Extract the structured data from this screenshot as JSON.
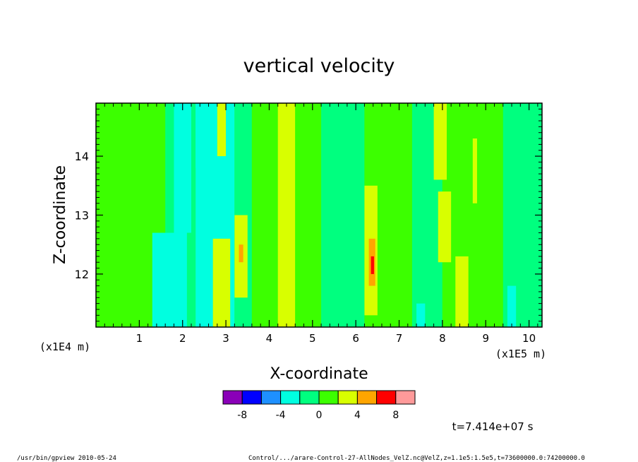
{
  "chart_data": {
    "type": "heatmap",
    "title": "vertical velocity",
    "xlabel": "X-coordinate",
    "ylabel": "Z-coordinate",
    "x_unit_left": "(x1E4 m)",
    "x_unit_right": "(x1E5 m)",
    "xlim": [
      0,
      10.3
    ],
    "ylim": [
      11.1,
      14.9
    ],
    "xticks": [
      "1",
      "2",
      "3",
      "4",
      "5",
      "6",
      "7",
      "8",
      "9",
      "10"
    ],
    "yticks": [
      "12",
      "13",
      "14"
    ],
    "colorbar": {
      "colors": [
        "#8a00b8",
        "#0000ff",
        "#1e90ff",
        "#00ffe0",
        "#00ff7f",
        "#3cff00",
        "#d8ff00",
        "#ffa500",
        "#ff0000",
        "#ff9a9a"
      ],
      "tick_labels": [
        "-8",
        "-4",
        "0",
        "4",
        "8"
      ]
    },
    "bands": [
      {
        "x0": 0.0,
        "x1": 1.6,
        "color": "#3cff00"
      },
      {
        "x0": 1.6,
        "x1": 2.3,
        "color": "#00ff7f"
      },
      {
        "x0": 2.3,
        "x1": 3.2,
        "color": "#00ffe0"
      },
      {
        "x0": 3.2,
        "x1": 3.6,
        "color": "#00ff7f"
      },
      {
        "x0": 3.6,
        "x1": 4.2,
        "color": "#3cff00"
      },
      {
        "x0": 4.2,
        "x1": 4.6,
        "color": "#d8ff00"
      },
      {
        "x0": 4.6,
        "x1": 5.2,
        "color": "#3cff00"
      },
      {
        "x0": 5.2,
        "x1": 6.2,
        "color": "#00ff7f"
      },
      {
        "x0": 6.2,
        "x1": 7.3,
        "color": "#3cff00"
      },
      {
        "x0": 7.3,
        "x1": 8.0,
        "color": "#00ff7f"
      },
      {
        "x0": 8.0,
        "x1": 8.6,
        "color": "#3cff00"
      },
      {
        "x0": 8.6,
        "x1": 9.4,
        "color": "#3cff00"
      },
      {
        "x0": 9.4,
        "x1": 10.3,
        "color": "#00ff7f"
      }
    ],
    "features": [
      {
        "x0": 1.3,
        "x1": 2.1,
        "z0": 11.1,
        "z1": 12.7,
        "color": "#00ffe0"
      },
      {
        "x0": 1.8,
        "x1": 2.2,
        "z0": 12.7,
        "z1": 14.9,
        "color": "#00ffe0"
      },
      {
        "x0": 2.3,
        "x1": 2.6,
        "z0": 13.8,
        "z1": 14.9,
        "color": "#00ffe0"
      },
      {
        "x0": 2.7,
        "x1": 3.1,
        "z0": 11.1,
        "z1": 12.6,
        "color": "#d8ff00"
      },
      {
        "x0": 2.8,
        "x1": 3.0,
        "z0": 14.0,
        "z1": 14.9,
        "color": "#d8ff00"
      },
      {
        "x0": 3.2,
        "x1": 3.5,
        "z0": 11.6,
        "z1": 13.0,
        "color": "#d8ff00"
      },
      {
        "x0": 3.3,
        "x1": 3.4,
        "z0": 12.2,
        "z1": 12.5,
        "color": "#ffa500"
      },
      {
        "x0": 6.2,
        "x1": 6.5,
        "z0": 11.3,
        "z1": 13.5,
        "color": "#d8ff00"
      },
      {
        "x0": 6.3,
        "x1": 6.45,
        "z0": 11.8,
        "z1": 12.6,
        "color": "#ffa500"
      },
      {
        "x0": 6.35,
        "x1": 6.42,
        "z0": 12.0,
        "z1": 12.3,
        "color": "#ff0000"
      },
      {
        "x0": 7.8,
        "x1": 8.1,
        "z0": 13.6,
        "z1": 14.9,
        "color": "#d8ff00"
      },
      {
        "x0": 7.9,
        "x1": 8.2,
        "z0": 12.2,
        "z1": 13.4,
        "color": "#d8ff00"
      },
      {
        "x0": 8.3,
        "x1": 8.6,
        "z0": 11.1,
        "z1": 12.3,
        "color": "#d8ff00"
      },
      {
        "x0": 8.7,
        "x1": 8.8,
        "z0": 13.2,
        "z1": 14.3,
        "color": "#d8ff00"
      },
      {
        "x0": 9.5,
        "x1": 9.7,
        "z0": 11.1,
        "z1": 11.8,
        "color": "#00ffe0"
      },
      {
        "x0": 7.4,
        "x1": 7.6,
        "z0": 11.1,
        "z1": 11.5,
        "color": "#00ffe0"
      }
    ]
  },
  "time_label": "t=7.414e+07 s",
  "footer": {
    "left": "/usr/bin/gpview   2010-05-24",
    "right": "Control/.../arare-Control-27-AllNodes_VelZ.nc@VelZ,z=1.1e5:1.5e5,t=73600000.0:74200000.0"
  }
}
